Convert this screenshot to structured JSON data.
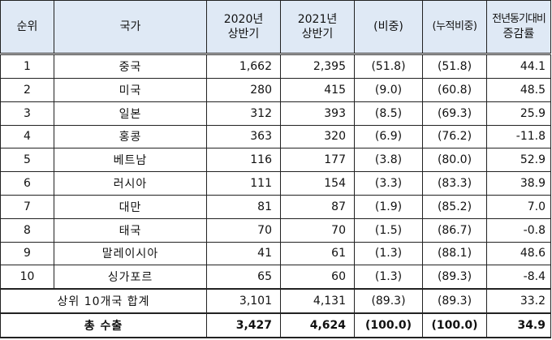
{
  "header": {
    "rank": "순위",
    "country": "국가",
    "h2020_line1": "2020년",
    "h2020_line2": "상반기",
    "h2021_line1": "2021년",
    "h2021_line2": "상반기",
    "share": "(비중)",
    "cum_share": "(누적비중)",
    "yoy_line1": "전년동기대비",
    "yoy_line2": "증감률"
  },
  "rows": [
    {
      "rank": "1",
      "country": "중국",
      "y2020": "1,662",
      "y2021": "2,395",
      "share": "(51.8)",
      "cum": "(51.8)",
      "yoy": "44.1"
    },
    {
      "rank": "2",
      "country": "미국",
      "y2020": "280",
      "y2021": "415",
      "share": "(9.0)",
      "cum": "(60.8)",
      "yoy": "48.5"
    },
    {
      "rank": "3",
      "country": "일본",
      "y2020": "312",
      "y2021": "393",
      "share": "(8.5)",
      "cum": "(69.3)",
      "yoy": "25.9"
    },
    {
      "rank": "4",
      "country": "홍콩",
      "y2020": "363",
      "y2021": "320",
      "share": "(6.9)",
      "cum": "(76.2)",
      "yoy": "-11.8"
    },
    {
      "rank": "5",
      "country": "베트남",
      "y2020": "116",
      "y2021": "177",
      "share": "(3.8)",
      "cum": "(80.0)",
      "yoy": "52.9"
    },
    {
      "rank": "6",
      "country": "러시아",
      "y2020": "111",
      "y2021": "154",
      "share": "(3.3)",
      "cum": "(83.3)",
      "yoy": "38.9"
    },
    {
      "rank": "7",
      "country": "대만",
      "y2020": "81",
      "y2021": "87",
      "share": "(1.9)",
      "cum": "(85.2)",
      "yoy": "7.0"
    },
    {
      "rank": "8",
      "country": "태국",
      "y2020": "70",
      "y2021": "70",
      "share": "(1.5)",
      "cum": "(86.7)",
      "yoy": "-0.8"
    },
    {
      "rank": "9",
      "country": "말레이시아",
      "y2020": "41",
      "y2021": "61",
      "share": "(1.3)",
      "cum": "(88.1)",
      "yoy": "48.6"
    },
    {
      "rank": "10",
      "country": "싱가포르",
      "y2020": "65",
      "y2021": "60",
      "share": "(1.3)",
      "cum": "(89.3)",
      "yoy": "-8.4"
    }
  ],
  "summary": {
    "label": "상위 10개국 합계",
    "y2020": "3,101",
    "y2021": "4,131",
    "share": "(89.3)",
    "cum": "(89.3)",
    "yoy": "33.2"
  },
  "total": {
    "label": "총 수출",
    "y2020": "3,427",
    "y2021": "4,624",
    "share": "(100.0)",
    "cum": "(100.0)",
    "yoy": "34.9"
  }
}
